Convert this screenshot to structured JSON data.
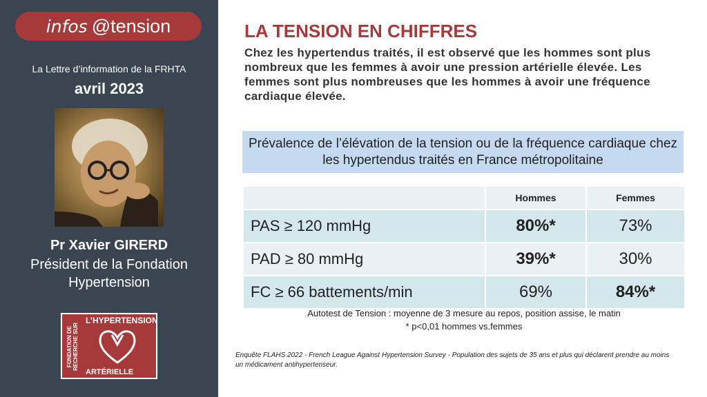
{
  "sidebar": {
    "brand_part1": "infos",
    "brand_part2": "@tension",
    "newsletter": "La Lettre d’information de la FRHTA",
    "date": "avril 2023",
    "person_name": "Pr Xavier GIRERD",
    "person_role": "Président de la Fondation Hypertension",
    "logo": {
      "line_top": "L’HYPERTENSION",
      "line_bottom": "ARTÉRIELLE",
      "vertical": "FONDATION DE RECHERCHE SUR"
    }
  },
  "main": {
    "title": "LA TENSION EN CHIFFRES",
    "intro": "Chez les hypertendus traités, il est observé que les hommes sont plus nombreux que les femmes à avoir une pression artérielle élevée. Les femmes sont plus nombreuses que les hommes à avoir une fréquence cardiaque élevée.",
    "banner": "Prévalence de l’élévation de la tension ou de la fréquence cardiaque chez les hypertendus traités en France métropolitaine",
    "table": {
      "headers": [
        "",
        "Hommes",
        "Femmes"
      ],
      "rows": [
        {
          "label": "PAS  ≥ 120 mmHg",
          "hommes": "80%*",
          "femmes": "73%"
        },
        {
          "label": "PAD  ≥ 80 mmHg",
          "hommes": "39%*",
          "femmes": "30%"
        },
        {
          "label": "FC ≥ 66 battements/min",
          "hommes": "69%",
          "femmes": "84%*"
        }
      ]
    },
    "note1": "Autotest de Tension : moyenne de 3 mesure au repos, position assise, le matin",
    "note2": "* p<0,01 hommes vs.femmes",
    "survey": "Enquête FLAHS 2022 - French League Against Hypertension Survey - Population des sujets de 35 ans et plus qui déclarent prendre au moins un médicament antihypertenseur."
  },
  "colors": {
    "sidebar_bg": "#3b4552",
    "brand_red": "#a63a3a",
    "banner_bg": "#c5d9f1",
    "table_row_dark": "#d4e7ec",
    "table_row_light": "#e9f1f4"
  }
}
